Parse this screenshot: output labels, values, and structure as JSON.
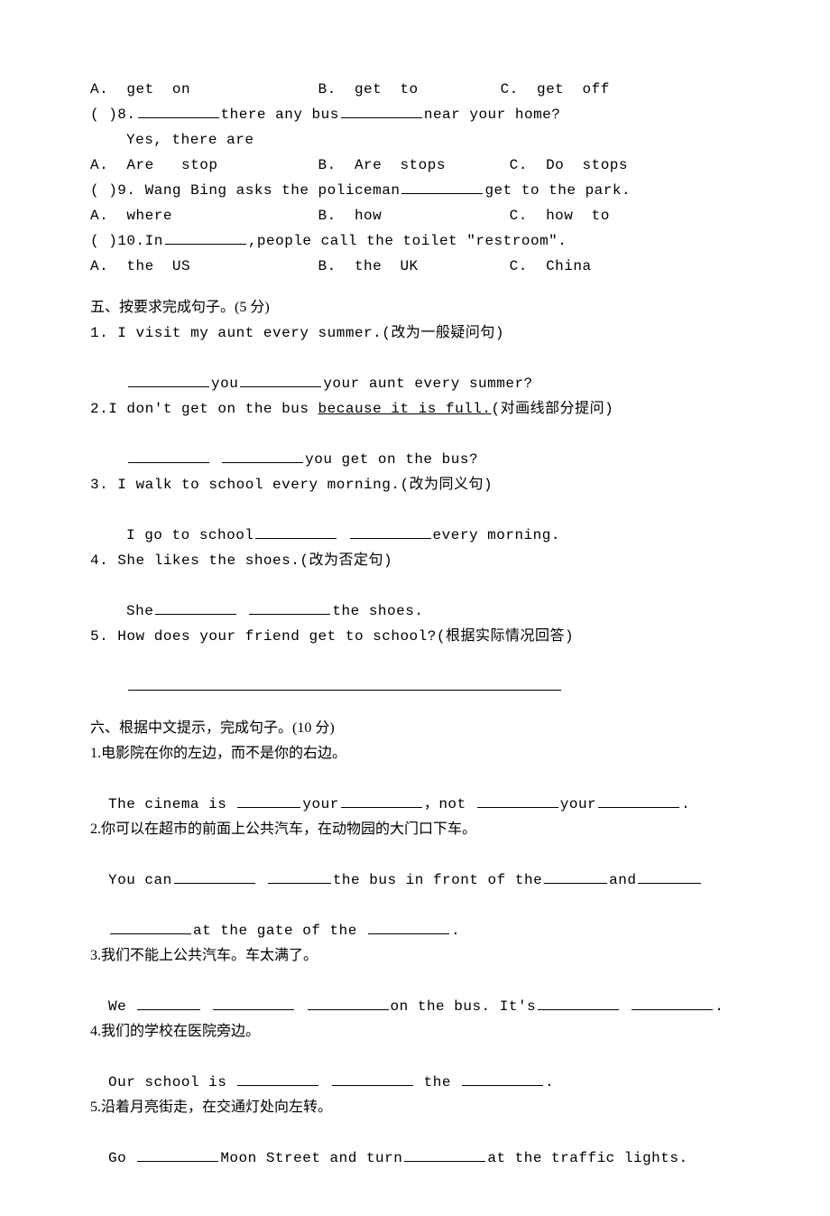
{
  "section4": {
    "q7_opts": "A.  get  on              B.  get  to         C.  get  off",
    "q8_stem_a": "(    )8.",
    "q8_stem_b": "there  any  bus",
    "q8_stem_c": "near  your  home?",
    "q8_ans": "Yes,  there  are",
    "q8_opts": "A.  Are   stop           B.  Are  stops       C.  Do  stops",
    "q9_stem_a": "(    )9.  Wang  Bing  asks  the  policeman",
    "q9_stem_b": "get  to  the  park.",
    "q9_opts": "A.  where                B.  how              C.  how  to",
    "q10_stem_a": "(    )10.In",
    "q10_stem_b": ",people  call  the  toilet  \"restroom\".",
    "q10_opts": "A.  the  US              B.  the  UK          C.  China"
  },
  "section5": {
    "head": "五、按要求完成句子。(5 分)",
    "q1": "1.  I  visit  my  aunt  every  summer.(改为一般疑问句)",
    "q1_fill_b": "you",
    "q1_fill_c": "your  aunt  every  summer?",
    "q2_a": "2.I don't  get  on  the  bus ",
    "q2_u": "because  it  is  full.",
    "q2_b": "(对画线部分提问)",
    "q2_fill_c": "you  get  on  the  bus?",
    "q3": "3.  I  walk  to  school  every  morning.(改为同义句)",
    "q3_fill_a": "I  go  to  school",
    "q3_fill_c": "every  morning.",
    "q4": "4.  She  likes  the  shoes.(改为否定句)",
    "q4_fill_a": "She",
    "q4_fill_c": "the  shoes.",
    "q5": "5.  How  does  your  friend  get  to  school?(根据实际情况回答)"
  },
  "section6": {
    "head": "六、根据中文提示，完成句子。(10 分)",
    "q1_cn": "1.电影院在你的左边，而不是你的右边。",
    "q1_a": "The  cinema  is ",
    "q1_b": "your",
    "q1_c": "，not ",
    "q1_d": "your",
    "q1_e": ".",
    "q2_cn": "2.你可以在超市的前面上公共汽车，在动物园的大门口下车。",
    "q2_a": "You can",
    "q2_b": "the  bus  in  front  of  the",
    "q2_c": "and",
    "q2_d": "at the  gate  of  the ",
    "q2_e": ".",
    "q3_cn": "3.我们不能上公共汽车。车太满了。",
    "q3_a": "We ",
    "q3_b": "on the  bus.  It's",
    "q3_c": ".",
    "q4_cn": "4.我们的学校在医院旁边。",
    "q4_a": "Our  school  is  ",
    "q4_b": " the ",
    "q4_c": ".",
    "q5_cn": "5.沿着月亮街走，在交通灯处向左转。",
    "q5_a": "Go  ",
    "q5_b": "Moon  Street  and  turn",
    "q5_c": "at  the  traffic  lights."
  }
}
